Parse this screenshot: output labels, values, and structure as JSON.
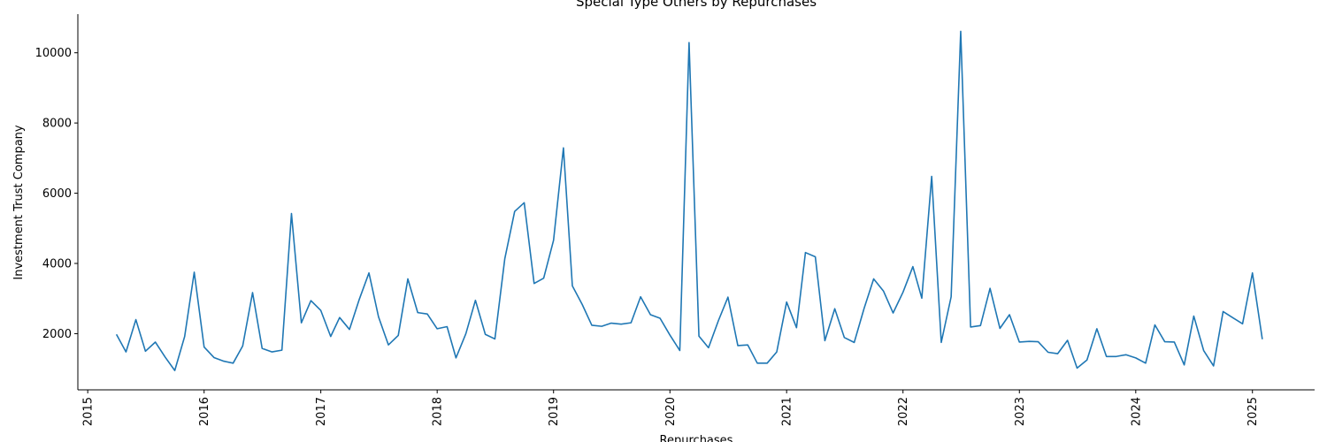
{
  "chart_data": {
    "type": "line",
    "title": "Special Type Others by Repurchases",
    "xlabel": "Repurchases",
    "ylabel": "Investment Trust Company",
    "x_ticks": [
      "2015",
      "2016",
      "2017",
      "2018",
      "2019",
      "2020",
      "2021",
      "2022",
      "2023",
      "2024",
      "2025"
    ],
    "y_ticks": [
      2000,
      4000,
      6000,
      8000,
      10000
    ],
    "xlim": [
      "2014-12-01",
      "2025-07-15"
    ],
    "ylim": [
      400,
      11100
    ],
    "grid": false,
    "legend": "none",
    "line_color": "#1f77b4",
    "series": [
      {
        "x": [
          "2015-04-01",
          "2015-05-01",
          "2015-06-01",
          "2015-07-01",
          "2015-08-01",
          "2015-09-01",
          "2015-10-01",
          "2015-11-01",
          "2015-12-01",
          "2016-01-01",
          "2016-02-01",
          "2016-03-01",
          "2016-04-01",
          "2016-05-01",
          "2016-06-01",
          "2016-07-01",
          "2016-08-01",
          "2016-09-01",
          "2016-10-01",
          "2016-11-01",
          "2016-12-01",
          "2017-01-01",
          "2017-02-01",
          "2017-03-01",
          "2017-04-01",
          "2017-05-01",
          "2017-06-01",
          "2017-07-01",
          "2017-08-01",
          "2017-09-01",
          "2017-10-01",
          "2017-11-01",
          "2017-12-01",
          "2018-01-01",
          "2018-02-01",
          "2018-03-01",
          "2018-04-01",
          "2018-05-01",
          "2018-06-01",
          "2018-07-01",
          "2018-08-01",
          "2018-09-01",
          "2018-10-01",
          "2018-11-01",
          "2018-12-01",
          "2019-01-01",
          "2019-02-01",
          "2019-03-01",
          "2019-04-01",
          "2019-05-01",
          "2019-06-01",
          "2019-07-01",
          "2019-08-01",
          "2019-09-01",
          "2019-10-01",
          "2019-11-01",
          "2019-12-01",
          "2020-01-01",
          "2020-02-01",
          "2020-03-01",
          "2020-04-01",
          "2020-05-01",
          "2020-06-01",
          "2020-07-01",
          "2020-08-01",
          "2020-09-01",
          "2020-10-01",
          "2020-11-01",
          "2020-12-01",
          "2021-01-01",
          "2021-02-01",
          "2021-03-01",
          "2021-04-01",
          "2021-05-01",
          "2021-06-01",
          "2021-07-01",
          "2021-08-01",
          "2021-09-01",
          "2021-10-01",
          "2021-11-01",
          "2021-12-01",
          "2022-01-01",
          "2022-02-01",
          "2022-03-01",
          "2022-04-01",
          "2022-05-01",
          "2022-06-01",
          "2022-07-01",
          "2022-08-01",
          "2022-09-01",
          "2022-10-01",
          "2022-11-01",
          "2022-12-01",
          "2023-01-01",
          "2023-02-01",
          "2023-03-01",
          "2023-04-01",
          "2023-05-01",
          "2023-06-01",
          "2023-07-01",
          "2023-08-01",
          "2023-09-01",
          "2023-10-01",
          "2023-11-01",
          "2023-12-01",
          "2024-01-01",
          "2024-02-01",
          "2024-03-01",
          "2024-04-01",
          "2024-05-01",
          "2024-06-01",
          "2024-07-01",
          "2024-08-01",
          "2024-09-01",
          "2024-10-01",
          "2024-11-01",
          "2024-12-01",
          "2025-01-01",
          "2025-02-01"
        ],
        "y": [
          1980,
          1480,
          2400,
          1500,
          1760,
          1330,
          950,
          1920,
          3750,
          1620,
          1320,
          1220,
          1160,
          1650,
          3170,
          1580,
          1480,
          1530,
          5420,
          2310,
          2940,
          2660,
          1920,
          2460,
          2120,
          2960,
          3730,
          2480,
          1680,
          1950,
          3560,
          2600,
          2560,
          2140,
          2200,
          1310,
          2000,
          2950,
          1980,
          1850,
          4130,
          5480,
          5730,
          3430,
          3580,
          4660,
          7290,
          3360,
          2830,
          2240,
          2210,
          2300,
          2270,
          2310,
          3050,
          2540,
          2440,
          1960,
          1520,
          10290,
          1930,
          1600,
          2370,
          3040,
          1660,
          1680,
          1160,
          1160,
          1480,
          2900,
          2170,
          4310,
          4190,
          1800,
          2710,
          1890,
          1750,
          2720,
          3560,
          3210,
          2590,
          3180,
          3910,
          3010,
          6480,
          1750,
          3050,
          10610,
          2190,
          2230,
          3290,
          2150,
          2540,
          1760,
          1780,
          1770,
          1470,
          1430,
          1810,
          1020,
          1250,
          2140,
          1350,
          1350,
          1400,
          1310,
          1160,
          2250,
          1770,
          1760,
          1110,
          2500,
          1520,
          1080,
          2630,
          2450,
          2280,
          3730,
          1840
        ]
      }
    ]
  }
}
